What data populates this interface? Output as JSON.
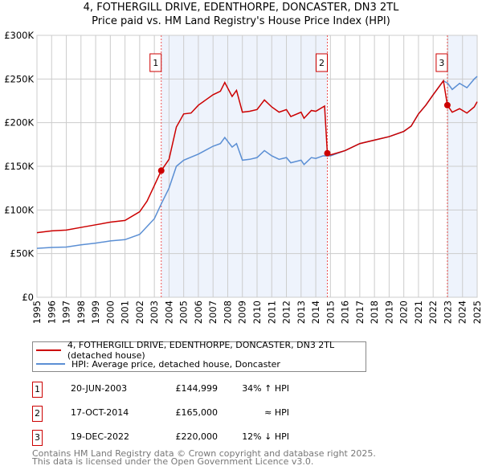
{
  "title": "4, FOTHERGILL DRIVE, EDENTHORPE, DONCASTER, DN3 2TL",
  "subtitle": "Price paid vs. HM Land Registry's House Price Index (HPI)",
  "chart_data": {
    "type": "line",
    "ylim": [
      0,
      300000
    ],
    "xlim": [
      1995,
      2025
    ],
    "yticks": [
      0,
      50000,
      100000,
      150000,
      200000,
      250000,
      300000
    ],
    "ytick_labels": [
      "£0",
      "£50K",
      "£100K",
      "£150K",
      "£200K",
      "£250K",
      "£300K"
    ],
    "xtick_labels": [
      "1995",
      "1996",
      "1997",
      "1998",
      "1999",
      "2000",
      "2001",
      "2002",
      "2003",
      "2004",
      "2005",
      "2006",
      "2007",
      "2008",
      "2009",
      "2010",
      "2011",
      "2012",
      "2013",
      "2014",
      "2015",
      "2016",
      "2017",
      "2018",
      "2019",
      "2020",
      "2021",
      "2022",
      "2023",
      "2024",
      "2025"
    ],
    "grid": true,
    "shaded_ranges": [
      [
        2003.47,
        2014.79
      ],
      [
        2022.97,
        2025
      ]
    ],
    "series": [
      {
        "name": "4, FOTHERGILL DRIVE, EDENTHORPE, DONCASTER, DN3 2TL (detached house)",
        "color": "#cc0000",
        "x": [
          1995,
          1996,
          1997,
          1998,
          1999,
          2000,
          2001,
          2002,
          2002.5,
          2003,
          2003.47,
          2004,
          2004.5,
          2005,
          2005.5,
          2006,
          2007,
          2007.5,
          2007.8,
          2008.3,
          2008.6,
          2009,
          2009.5,
          2010,
          2010.5,
          2011,
          2011.5,
          2012,
          2012.3,
          2013,
          2013.2,
          2013.7,
          2014,
          2014.6,
          2014.79,
          2015,
          2016,
          2017,
          2018,
          2019,
          2020,
          2020.5,
          2021,
          2021.5,
          2022,
          2022.7,
          2022.97,
          2023.3,
          2023.8,
          2024.3,
          2024.8,
          2025
        ],
        "y": [
          74000,
          76000,
          77000,
          80000,
          83000,
          86000,
          88000,
          98000,
          110000,
          128000,
          145000,
          158000,
          195000,
          210000,
          211000,
          220000,
          232000,
          236000,
          246000,
          230000,
          237000,
          212000,
          213000,
          215000,
          226000,
          218000,
          212000,
          215000,
          207000,
          212000,
          205000,
          214000,
          213000,
          219000,
          165000,
          163000,
          168000,
          176000,
          180000,
          184000,
          190000,
          196000,
          210000,
          220000,
          232000,
          248000,
          220000,
          212000,
          216000,
          211000,
          218000,
          224000
        ]
      },
      {
        "name": "HPI: Average price, detached house, Doncaster",
        "color": "#5b8fd4",
        "x": [
          1995,
          1996,
          1997,
          1998,
          1999,
          2000,
          2001,
          2002,
          2003,
          2003.5,
          2004,
          2004.5,
          2005,
          2006,
          2007,
          2007.5,
          2007.8,
          2008.3,
          2008.6,
          2009,
          2009.5,
          2010,
          2010.5,
          2011,
          2011.5,
          2012,
          2012.3,
          2013,
          2013.2,
          2013.7,
          2014,
          2014.5,
          2015,
          2016,
          2017,
          2018,
          2019,
          2020,
          2020.5,
          2021,
          2021.5,
          2022,
          2022.7,
          2023,
          2023.3,
          2023.8,
          2024.3,
          2024.8,
          2025
        ],
        "y": [
          56000,
          57000,
          57500,
          60000,
          62000,
          64500,
          66000,
          72000,
          90000,
          108000,
          125000,
          150000,
          157000,
          164000,
          173000,
          176000,
          183000,
          172000,
          176000,
          157000,
          158000,
          160000,
          168000,
          162000,
          158000,
          160000,
          154000,
          157000,
          152000,
          160000,
          159000,
          162000,
          162000,
          168000,
          176000,
          180000,
          184000,
          190000,
          196000,
          210000,
          220000,
          232000,
          248000,
          245000,
          238000,
          245000,
          240000,
          250000,
          253000
        ]
      }
    ],
    "sales": [
      {
        "label": "1",
        "x": 2003.47,
        "y": 144999
      },
      {
        "label": "2",
        "x": 2014.79,
        "y": 165000
      },
      {
        "label": "3",
        "x": 2022.97,
        "y": 220000
      }
    ]
  },
  "legend": [
    "4, FOTHERGILL DRIVE, EDENTHORPE, DONCASTER, DN3 2TL (detached house)",
    "HPI: Average price, detached house, Doncaster"
  ],
  "transactions": [
    {
      "num": "1",
      "date": "20-JUN-2003",
      "price": "£144,999",
      "hpi": "34% ↑ HPI"
    },
    {
      "num": "2",
      "date": "17-OCT-2014",
      "price": "£165,000",
      "hpi": "≈ HPI"
    },
    {
      "num": "3",
      "date": "19-DEC-2022",
      "price": "£220,000",
      "hpi": "12% ↓ HPI"
    }
  ],
  "footer": [
    "Contains HM Land Registry data © Crown copyright and database right 2025.",
    "This data is licensed under the Open Government Licence v3.0."
  ]
}
